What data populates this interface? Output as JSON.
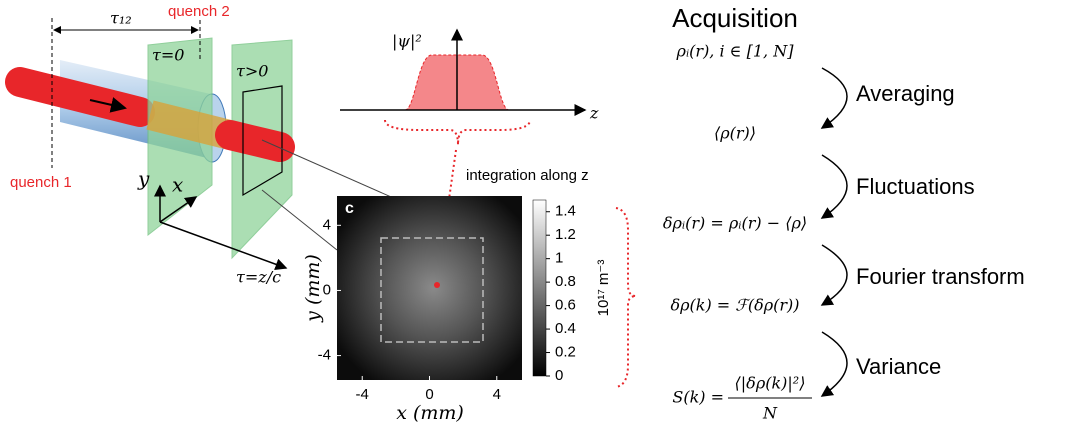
{
  "setup": {
    "quench_2": "quench 2",
    "delay": "τ₁₂",
    "plane_1": "τ=0",
    "plane_2": "τ>0",
    "quench_1": "quench 1",
    "axis_y": "y",
    "axis_x": "x",
    "axis_tau": "τ=z/c"
  },
  "profile": {
    "ylabel": "|ψ|²",
    "xlabel": "z",
    "annotation": "integration along z"
  },
  "image_panel": {
    "panel_label": "c",
    "xlabel": "x (mm)",
    "ylabel": "y (mm)",
    "xlim": [
      -5.5,
      5.5
    ],
    "ylim": [
      -5.5,
      5.8
    ],
    "xticks": [
      -4,
      0,
      4
    ],
    "yticks": [
      -4,
      0,
      4
    ],
    "colorbar": {
      "label": "10¹⁷ m⁻³",
      "lim": [
        0,
        1.5
      ],
      "ticks": [
        0,
        0.2,
        0.4,
        0.6,
        0.8,
        1,
        1.2,
        1.4
      ]
    }
  },
  "pipeline": {
    "title": "Acquisition",
    "expressions": [
      "ρᵢ(r),  i ∈ [1, N]",
      "⟨ρ(r)⟩",
      "δρᵢ(r) = ρᵢ(r) − ⟨ρ⟩",
      "δρ(k) = ℱ(δρ(r))"
    ],
    "stages": [
      "Averaging",
      "Fluctuations",
      "Fourier transform",
      "Variance"
    ],
    "variance": {
      "lhs": "S(k) =",
      "numerator": "⟨|δρ(k)|²⟩",
      "denominator": "N"
    }
  }
}
